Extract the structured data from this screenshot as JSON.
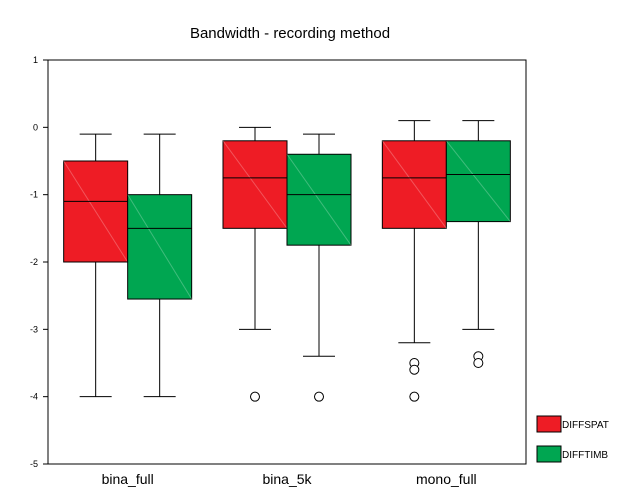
{
  "chart_data": {
    "type": "box",
    "title": "Bandwidth - recording method",
    "xlabel": "",
    "ylabel": "",
    "ylim": [
      -5,
      1
    ],
    "yticks": [
      "1",
      "0",
      "-1",
      "-2",
      "-3",
      "-4",
      "-5"
    ],
    "categories": [
      "bina_full",
      "bina_5k",
      "mono_full"
    ],
    "legend_position": "bottom-right",
    "grid": false,
    "series": [
      {
        "name": "DIFFSPAT",
        "color": "#ee1c25",
        "boxes": [
          {
            "min": -4.0,
            "q1": -2.0,
            "median": -1.1,
            "q3": -0.5,
            "max": -0.1,
            "outliers": []
          },
          {
            "min": -3.0,
            "q1": -1.5,
            "median": -0.75,
            "q3": -0.2,
            "max": 0.0,
            "outliers": [
              -4.0
            ]
          },
          {
            "min": -3.2,
            "q1": -1.5,
            "median": -0.75,
            "q3": -0.2,
            "max": 0.1,
            "outliers": [
              -3.5,
              -3.6,
              -4.0
            ]
          }
        ]
      },
      {
        "name": "DIFFTIMB",
        "color": "#00a651",
        "boxes": [
          {
            "min": -4.0,
            "q1": -2.55,
            "median": -1.5,
            "q3": -1.0,
            "max": -0.1,
            "outliers": []
          },
          {
            "min": -3.4,
            "q1": -1.75,
            "median": -1.0,
            "q3": -0.4,
            "max": -0.1,
            "outliers": [
              -4.0
            ]
          },
          {
            "min": -3.0,
            "q1": -1.4,
            "median": -0.7,
            "q3": -0.2,
            "max": 0.1,
            "outliers": [
              -3.4,
              -3.5
            ]
          }
        ]
      }
    ]
  }
}
